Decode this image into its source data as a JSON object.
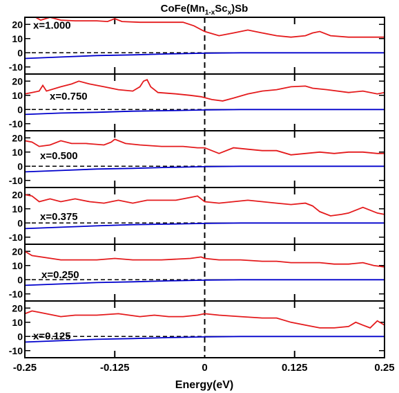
{
  "chart_data": {
    "type": "line",
    "title_parts": {
      "base": "CoFe(Mn",
      "sub1": "1-x",
      "mid": "Sc",
      "sub2": "x",
      "end": ")Sb"
    },
    "xlabel": "Energy(eV)",
    "xlim": [
      -0.25,
      0.25
    ],
    "x_ticks": [
      "-0.25",
      "-0.125",
      "0",
      "0.125",
      "0.25"
    ],
    "x_tick_values": [
      -0.25,
      -0.125,
      0,
      0.125,
      0.25
    ],
    "ylim": [
      -15,
      25
    ],
    "y_ticks": [
      "20",
      "10",
      "0",
      "-10"
    ],
    "y_tick_values": [
      20,
      10,
      0,
      -10
    ],
    "colors": {
      "majority": "#e41a1c",
      "minority": "#0000cc",
      "axes": "#000000"
    },
    "panels": [
      {
        "label": "x=1.000",
        "majority": [
          [
            -0.25,
            25
          ],
          [
            -0.235,
            25
          ],
          [
            -0.228,
            23
          ],
          [
            -0.215,
            25
          ],
          [
            -0.2,
            23
          ],
          [
            -0.18,
            22.5
          ],
          [
            -0.15,
            22.5
          ],
          [
            -0.135,
            22
          ],
          [
            -0.125,
            24
          ],
          [
            -0.115,
            22
          ],
          [
            -0.09,
            21.5
          ],
          [
            -0.06,
            21.5
          ],
          [
            -0.03,
            21.5
          ],
          [
            -0.015,
            19
          ],
          [
            0,
            15
          ],
          [
            0.02,
            12
          ],
          [
            0.04,
            14
          ],
          [
            0.06,
            16
          ],
          [
            0.08,
            14
          ],
          [
            0.1,
            12
          ],
          [
            0.12,
            11
          ],
          [
            0.14,
            12
          ],
          [
            0.15,
            14
          ],
          [
            0.16,
            15
          ],
          [
            0.175,
            12
          ],
          [
            0.2,
            11
          ],
          [
            0.25,
            11
          ]
        ],
        "minority": [
          [
            -0.25,
            -4
          ],
          [
            -0.2,
            -3
          ],
          [
            -0.15,
            -2
          ],
          [
            -0.1,
            -1.5
          ],
          [
            -0.05,
            -0.8
          ],
          [
            0,
            -0.3
          ],
          [
            0.05,
            0
          ],
          [
            0.1,
            0
          ],
          [
            0.25,
            0
          ]
        ]
      },
      {
        "label": "x=0.750",
        "majority": [
          [
            -0.25,
            11
          ],
          [
            -0.24,
            12
          ],
          [
            -0.23,
            13
          ],
          [
            -0.225,
            17
          ],
          [
            -0.22,
            13
          ],
          [
            -0.2,
            16
          ],
          [
            -0.185,
            18
          ],
          [
            -0.175,
            20
          ],
          [
            -0.16,
            18
          ],
          [
            -0.14,
            16
          ],
          [
            -0.12,
            14
          ],
          [
            -0.1,
            13
          ],
          [
            -0.09,
            16
          ],
          [
            -0.085,
            20
          ],
          [
            -0.08,
            21
          ],
          [
            -0.075,
            16
          ],
          [
            -0.065,
            12
          ],
          [
            -0.04,
            11
          ],
          [
            -0.02,
            10
          ],
          [
            -0.005,
            9
          ],
          [
            0.01,
            7
          ],
          [
            0.025,
            6
          ],
          [
            0.04,
            8
          ],
          [
            0.06,
            11
          ],
          [
            0.08,
            13
          ],
          [
            0.1,
            14
          ],
          [
            0.12,
            16
          ],
          [
            0.14,
            16.5
          ],
          [
            0.15,
            15
          ],
          [
            0.17,
            14
          ],
          [
            0.2,
            12
          ],
          [
            0.22,
            13
          ],
          [
            0.24,
            11
          ],
          [
            0.25,
            12
          ]
        ],
        "minority": [
          [
            -0.25,
            -3.5
          ],
          [
            -0.2,
            -2.5
          ],
          [
            -0.15,
            -2
          ],
          [
            -0.1,
            -1.2
          ],
          [
            -0.05,
            -0.8
          ],
          [
            0,
            -0.3
          ],
          [
            0.05,
            0
          ],
          [
            0.1,
            0
          ],
          [
            0.25,
            0
          ]
        ]
      },
      {
        "label": "x=0.500",
        "majority": [
          [
            -0.25,
            18
          ],
          [
            -0.24,
            17
          ],
          [
            -0.23,
            14
          ],
          [
            -0.215,
            15
          ],
          [
            -0.2,
            18
          ],
          [
            -0.185,
            16
          ],
          [
            -0.165,
            16
          ],
          [
            -0.14,
            15
          ],
          [
            -0.13,
            17
          ],
          [
            -0.125,
            19
          ],
          [
            -0.11,
            16
          ],
          [
            -0.09,
            15
          ],
          [
            -0.06,
            14
          ],
          [
            -0.03,
            14
          ],
          [
            -0.01,
            13
          ],
          [
            0,
            13
          ],
          [
            0.02,
            9
          ],
          [
            0.04,
            13
          ],
          [
            0.06,
            12
          ],
          [
            0.08,
            11
          ],
          [
            0.1,
            11
          ],
          [
            0.12,
            8
          ],
          [
            0.14,
            9
          ],
          [
            0.16,
            10
          ],
          [
            0.18,
            9
          ],
          [
            0.2,
            10
          ],
          [
            0.22,
            10
          ],
          [
            0.24,
            9
          ],
          [
            0.25,
            9
          ]
        ],
        "minority": [
          [
            -0.25,
            -4
          ],
          [
            -0.2,
            -3
          ],
          [
            -0.15,
            -2
          ],
          [
            -0.1,
            -1.5
          ],
          [
            -0.05,
            -0.8
          ],
          [
            0,
            -0.3
          ],
          [
            0.05,
            0
          ],
          [
            0.1,
            0
          ],
          [
            0.25,
            0
          ]
        ]
      },
      {
        "label": "x=0.375",
        "majority": [
          [
            -0.25,
            20
          ],
          [
            -0.24,
            19
          ],
          [
            -0.23,
            15
          ],
          [
            -0.215,
            17
          ],
          [
            -0.2,
            15
          ],
          [
            -0.18,
            17
          ],
          [
            -0.16,
            15
          ],
          [
            -0.14,
            14
          ],
          [
            -0.12,
            16
          ],
          [
            -0.1,
            14
          ],
          [
            -0.08,
            16
          ],
          [
            -0.06,
            16
          ],
          [
            -0.04,
            16
          ],
          [
            -0.02,
            18
          ],
          [
            -0.01,
            19
          ],
          [
            0,
            15
          ],
          [
            0.02,
            14
          ],
          [
            0.04,
            15
          ],
          [
            0.06,
            16
          ],
          [
            0.08,
            15
          ],
          [
            0.1,
            14
          ],
          [
            0.12,
            13
          ],
          [
            0.14,
            14
          ],
          [
            0.15,
            12
          ],
          [
            0.16,
            8
          ],
          [
            0.175,
            5
          ],
          [
            0.19,
            6
          ],
          [
            0.2,
            7
          ],
          [
            0.21,
            9
          ],
          [
            0.22,
            11
          ],
          [
            0.23,
            9
          ],
          [
            0.24,
            7
          ],
          [
            0.25,
            6
          ]
        ],
        "minority": [
          [
            -0.25,
            -4
          ],
          [
            -0.2,
            -3
          ],
          [
            -0.15,
            -2
          ],
          [
            -0.1,
            -1.2
          ],
          [
            -0.05,
            -0.8
          ],
          [
            0,
            -0.3
          ],
          [
            0.05,
            0
          ],
          [
            0.1,
            0
          ],
          [
            0.25,
            0
          ]
        ]
      },
      {
        "label": "x=0.250",
        "majority": [
          [
            -0.25,
            20
          ],
          [
            -0.24,
            17
          ],
          [
            -0.2,
            14
          ],
          [
            -0.15,
            14
          ],
          [
            -0.125,
            15
          ],
          [
            -0.1,
            14
          ],
          [
            -0.06,
            14
          ],
          [
            -0.02,
            15
          ],
          [
            -0.005,
            16
          ],
          [
            0,
            15
          ],
          [
            0.02,
            14
          ],
          [
            0.05,
            14
          ],
          [
            0.08,
            13
          ],
          [
            0.1,
            13
          ],
          [
            0.12,
            12
          ],
          [
            0.14,
            12
          ],
          [
            0.16,
            12
          ],
          [
            0.18,
            11
          ],
          [
            0.2,
            11
          ],
          [
            0.22,
            12
          ],
          [
            0.235,
            10
          ],
          [
            0.25,
            9
          ]
        ],
        "minority": [
          [
            -0.25,
            -4
          ],
          [
            -0.2,
            -3
          ],
          [
            -0.15,
            -2
          ],
          [
            -0.1,
            -1.5
          ],
          [
            -0.05,
            -0.8
          ],
          [
            0,
            -0.3
          ],
          [
            0.05,
            0
          ],
          [
            0.1,
            0
          ],
          [
            0.25,
            0
          ]
        ]
      },
      {
        "label": "x=0.125",
        "majority": [
          [
            -0.25,
            16
          ],
          [
            -0.24,
            18
          ],
          [
            -0.23,
            17
          ],
          [
            -0.2,
            14
          ],
          [
            -0.18,
            15
          ],
          [
            -0.15,
            15
          ],
          [
            -0.12,
            16
          ],
          [
            -0.09,
            14
          ],
          [
            -0.07,
            15
          ],
          [
            -0.05,
            14
          ],
          [
            -0.03,
            14
          ],
          [
            -0.01,
            15
          ],
          [
            0,
            16
          ],
          [
            0.02,
            15
          ],
          [
            0.05,
            14
          ],
          [
            0.08,
            13
          ],
          [
            0.1,
            13
          ],
          [
            0.12,
            10
          ],
          [
            0.14,
            8
          ],
          [
            0.16,
            6
          ],
          [
            0.18,
            6
          ],
          [
            0.2,
            7
          ],
          [
            0.21,
            10
          ],
          [
            0.22,
            8
          ],
          [
            0.23,
            6
          ],
          [
            0.24,
            11
          ],
          [
            0.25,
            8
          ]
        ],
        "minority": [
          [
            -0.25,
            -4
          ],
          [
            -0.2,
            -3
          ],
          [
            -0.15,
            -2
          ],
          [
            -0.1,
            -1.5
          ],
          [
            -0.05,
            -0.8
          ],
          [
            0,
            -0.3
          ],
          [
            0.05,
            0
          ],
          [
            0.1,
            0
          ],
          [
            0.25,
            0
          ]
        ]
      }
    ]
  }
}
